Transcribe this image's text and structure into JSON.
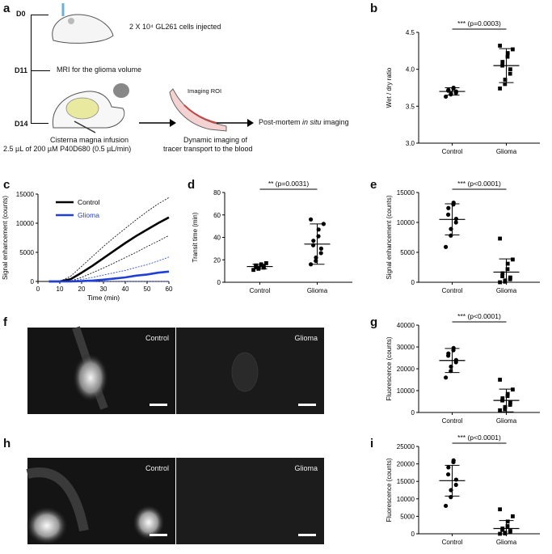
{
  "panel_letters": {
    "a": "a",
    "b": "b",
    "c": "c",
    "d": "d",
    "e": "e",
    "f": "f",
    "g": "g",
    "h": "h",
    "i": "i"
  },
  "schematic": {
    "d0": "D0",
    "d11": "D11",
    "d14": "D14",
    "cells_injected": "2 X 10⁴ GL261 cells injected",
    "mri": "MRI for the glioma volume",
    "infusion_title": "Cisterna magna infusion",
    "infusion_detail": "2.5 µL of 200 µM P40D680 (0.5 µL/min)",
    "imaging_roi": "Imaging ROI",
    "dynamic_line1": "Dynamic imaging of",
    "dynamic_line2": "tracer transport to the blood",
    "postmortem_prefix": "Post-mortem",
    "postmortem_italic": "in situ",
    "postmortem_suffix": "imaging"
  },
  "images": {
    "f_control": "Control",
    "f_glioma": "Glioma",
    "h_control": "Control",
    "h_glioma": "Glioma"
  },
  "chart_data": [
    {
      "panel": "b",
      "type": "scatter",
      "ylabel": "Wet / dry ratio",
      "ylim": [
        3.0,
        4.5
      ],
      "yticks": [
        3.0,
        3.5,
        4.0,
        4.5
      ],
      "categories": [
        "Control",
        "Glioma"
      ],
      "significance": "*** (p=0.0003)",
      "groups": [
        {
          "name": "Control",
          "marker": "circle",
          "mean": 3.7,
          "sd": 0.05,
          "points": [
            3.63,
            3.66,
            3.67,
            3.68,
            3.7,
            3.71,
            3.72,
            3.74,
            3.75
          ]
        },
        {
          "name": "Glioma",
          "marker": "square",
          "mean": 4.05,
          "sd": 0.23,
          "points": [
            3.74,
            3.8,
            3.86,
            3.94,
            4.0,
            4.05,
            4.1,
            4.17,
            4.22,
            4.27,
            4.32
          ]
        }
      ]
    },
    {
      "panel": "c",
      "type": "line",
      "xlabel": "Time (min)",
      "ylabel": "Signal enhancement (counts)",
      "xlim": [
        0,
        60
      ],
      "ylim": [
        0,
        15000
      ],
      "xticks": [
        0,
        10,
        20,
        30,
        40,
        50,
        60
      ],
      "yticks": [
        0,
        5000,
        10000,
        15000
      ],
      "legend": [
        "Control",
        "Glioma"
      ],
      "x": [
        5,
        10,
        15,
        20,
        25,
        30,
        35,
        40,
        45,
        50,
        55,
        60
      ],
      "series": [
        {
          "name": "Control",
          "color": "#000000",
          "mean": [
            0,
            0,
            400,
            1500,
            2700,
            4000,
            5300,
            6600,
            7800,
            8900,
            10000,
            11000
          ],
          "upper": [
            0,
            0,
            900,
            2600,
            4300,
            6000,
            7600,
            9100,
            10600,
            12000,
            13300,
            14400
          ],
          "lower": [
            0,
            0,
            100,
            700,
            1500,
            2300,
            3200,
            4100,
            5000,
            6000,
            6900,
            7900
          ]
        },
        {
          "name": "Glioma",
          "color": "#1f3fd6",
          "mean": [
            0,
            0,
            0,
            50,
            150,
            300,
            500,
            700,
            1000,
            1200,
            1500,
            1700
          ],
          "upper": [
            0,
            0,
            100,
            350,
            700,
            1100,
            1500,
            1900,
            2400,
            2900,
            3500,
            4200
          ],
          "lower": [
            0,
            0,
            0,
            0,
            0,
            0,
            0,
            0,
            0,
            0,
            0,
            0
          ]
        }
      ]
    },
    {
      "panel": "d",
      "type": "scatter",
      "ylabel": "Transit time (min)",
      "ylim": [
        0,
        80
      ],
      "yticks": [
        0,
        20,
        40,
        60,
        80
      ],
      "categories": [
        "Control",
        "Glioma"
      ],
      "significance": "** (p=0.0031)",
      "groups": [
        {
          "name": "Control",
          "marker": "square",
          "mean": 14,
          "sd": 2,
          "points": [
            11,
            12,
            13,
            13,
            14,
            14,
            15,
            15,
            16,
            17
          ]
        },
        {
          "name": "Glioma",
          "marker": "circle",
          "mean": 34,
          "sd": 18,
          "points": [
            16,
            19,
            22,
            26,
            30,
            33,
            37,
            41,
            47,
            52,
            56
          ]
        }
      ]
    },
    {
      "panel": "e",
      "type": "scatter",
      "ylabel": "Signal enhancement (counts)",
      "ylim": [
        0,
        15000
      ],
      "yticks": [
        0,
        5000,
        10000,
        15000
      ],
      "categories": [
        "Control",
        "Glioma"
      ],
      "significance": "*** (p<0.0001)",
      "groups": [
        {
          "name": "Control",
          "marker": "circle",
          "mean": 10500,
          "sd": 2600,
          "points": [
            5900,
            7800,
            8900,
            10000,
            10600,
            11300,
            12400,
            13000,
            13300
          ]
        },
        {
          "name": "Glioma",
          "marker": "square",
          "mean": 1700,
          "sd": 2200,
          "points": [
            0,
            100,
            300,
            500,
            800,
            1000,
            1500,
            2200,
            3100,
            3800,
            7300
          ]
        }
      ]
    },
    {
      "panel": "g",
      "type": "scatter",
      "ylabel": "Fluorescence (counts)",
      "ylim": [
        0,
        40000
      ],
      "yticks": [
        0,
        10000,
        20000,
        30000,
        40000
      ],
      "categories": [
        "Control",
        "Glioma"
      ],
      "significance": "*** (p<0.0001)",
      "groups": [
        {
          "name": "Control",
          "marker": "circle",
          "mean": 23800,
          "sd": 5500,
          "points": [
            16000,
            19000,
            21000,
            23000,
            24000,
            26000,
            27000,
            28500,
            29500
          ]
        },
        {
          "name": "Glioma",
          "marker": "square",
          "mean": 5500,
          "sd": 5200,
          "points": [
            1000,
            1500,
            2500,
            3500,
            4500,
            5500,
            6500,
            7500,
            8500,
            10500,
            15000
          ]
        }
      ]
    },
    {
      "panel": "i",
      "type": "scatter",
      "ylabel": "Fluorescence (counts)",
      "ylim": [
        0,
        25000
      ],
      "yticks": [
        0,
        5000,
        10000,
        15000,
        20000,
        25000
      ],
      "categories": [
        "Control",
        "Glioma"
      ],
      "significance": "*** (p<0.0001)",
      "groups": [
        {
          "name": "Control",
          "marker": "circle",
          "mean": 15200,
          "sd": 4400,
          "points": [
            8000,
            10500,
            12500,
            14000,
            15500,
            17000,
            19000,
            20500,
            21000
          ]
        },
        {
          "name": "Glioma",
          "marker": "square",
          "mean": 1500,
          "sd": 2300,
          "points": [
            0,
            100,
            300,
            500,
            800,
            1100,
            1500,
            2200,
            3500,
            5000,
            7000
          ]
        }
      ]
    }
  ]
}
